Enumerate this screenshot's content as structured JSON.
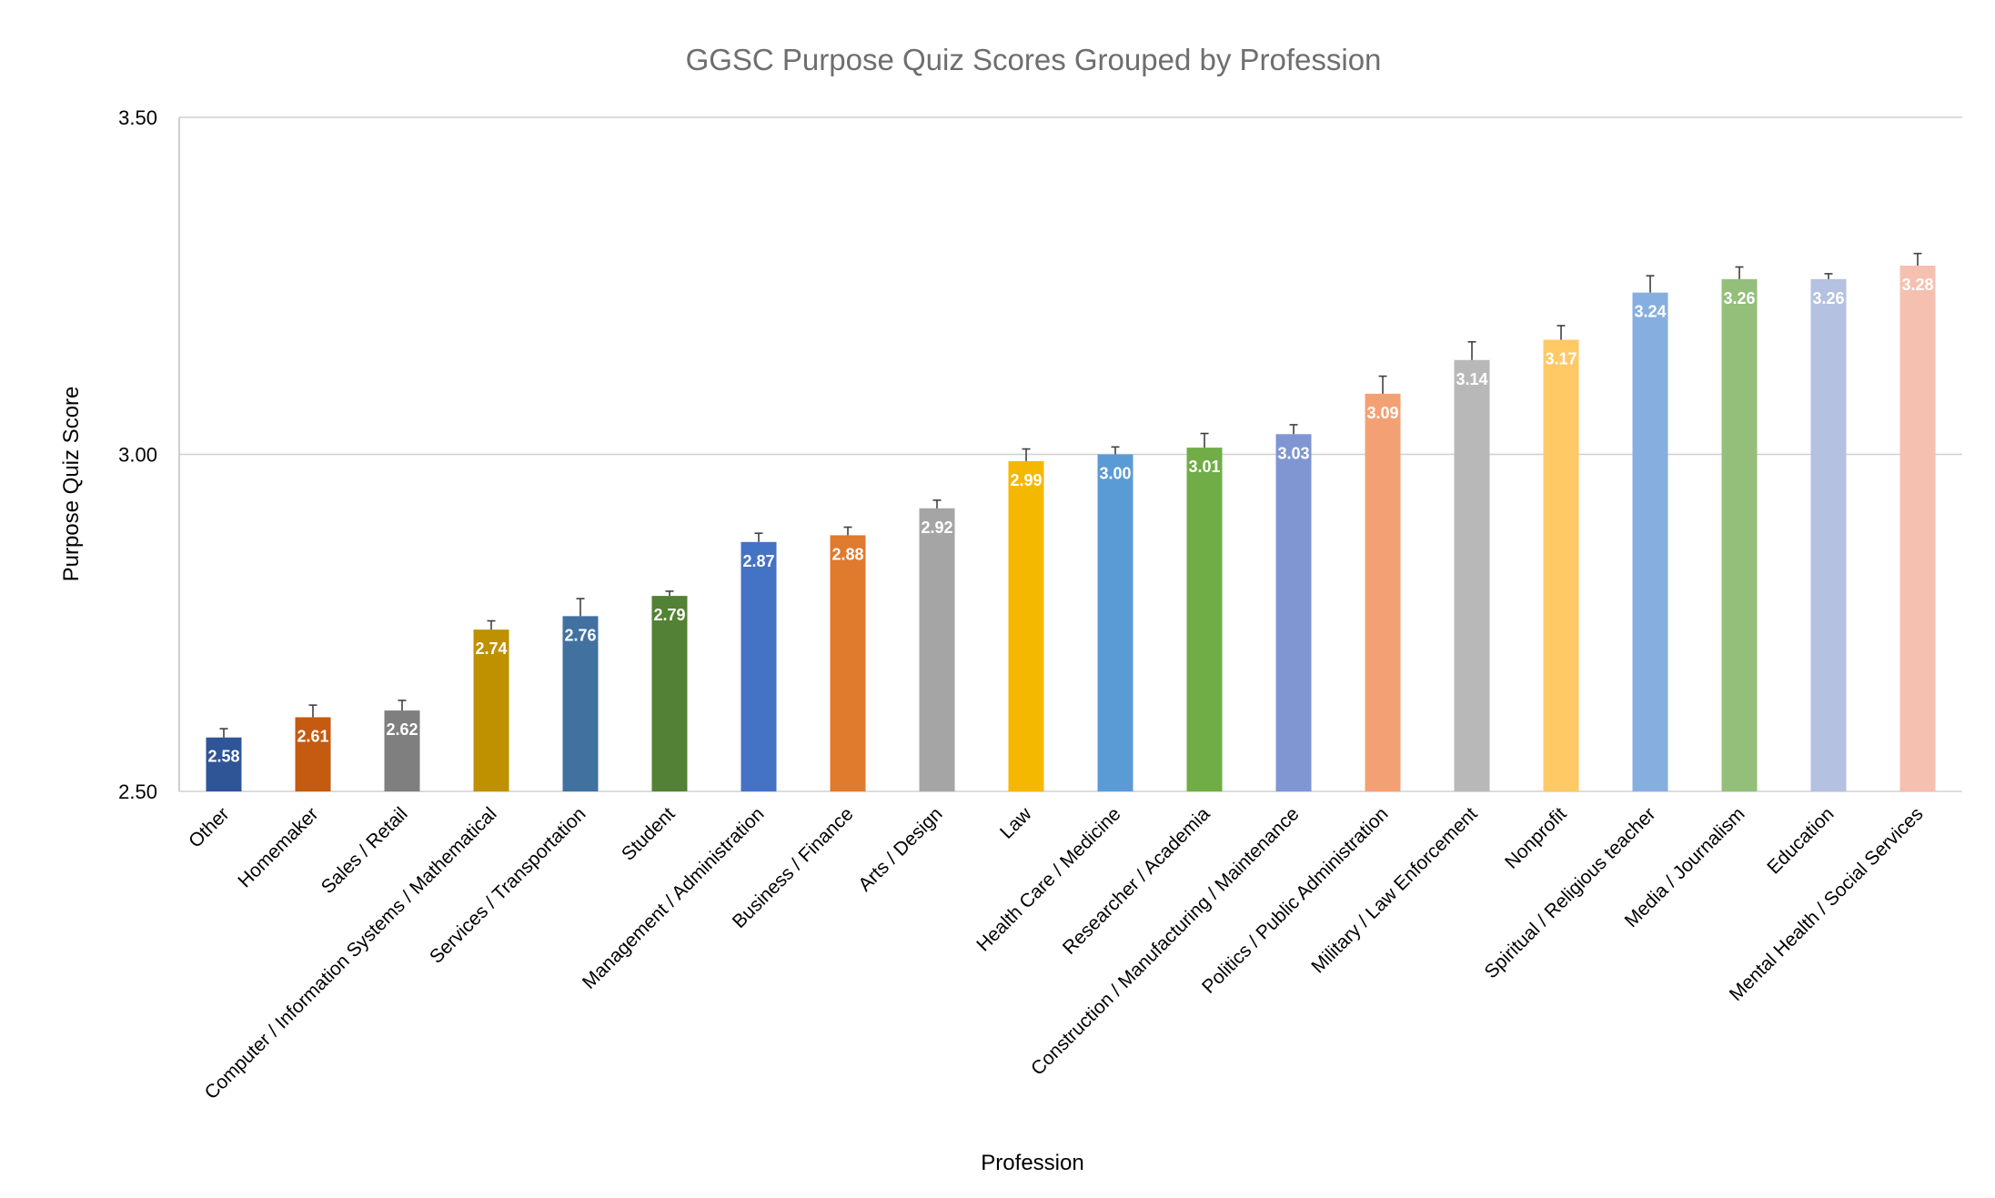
{
  "chart_data": {
    "type": "bar",
    "title": "GGSC Purpose Quiz Scores Grouped by Profession",
    "xlabel": "Profession",
    "ylabel": "Purpose Quiz Score",
    "ylim": [
      2.5,
      3.5
    ],
    "yticks": [
      "2.50",
      "3.00",
      "3.50"
    ],
    "grid": true,
    "legend": "none",
    "categories": [
      "Other",
      "Homemaker",
      "Sales / Retail",
      "Computer / Information Systems / Mathematical",
      "Services / Transportation",
      "Student",
      "Management / Administration",
      "Business / Finance",
      "Arts / Design",
      "Law",
      "Health Care / Medicine",
      "Researcher / Academia",
      "Construction / Manufacturing / Maintenance",
      "Politics / Public Administration",
      "Military / Law Enforcement",
      "Nonprofit",
      "Spiritual / Religious teacher",
      "Media / Journalism",
      "Education",
      "Mental Health / Social Services"
    ],
    "values": [
      2.58,
      2.61,
      2.62,
      2.74,
      2.76,
      2.79,
      2.87,
      2.88,
      2.92,
      2.99,
      3.0,
      3.01,
      3.03,
      3.09,
      3.14,
      3.17,
      3.24,
      3.26,
      3.26,
      3.28
    ],
    "labels": [
      "2.58",
      "2.61",
      "2.62",
      "2.74",
      "2.76",
      "2.79",
      "2.87",
      "2.88",
      "2.92",
      "2.99",
      "3.00",
      "3.01",
      "3.03",
      "3.09",
      "3.14",
      "3.17",
      "3.24",
      "3.26",
      "3.26",
      "3.28"
    ],
    "error_upper": [
      0.013,
      0.018,
      0.015,
      0.013,
      0.026,
      0.007,
      0.013,
      0.012,
      0.012,
      0.018,
      0.011,
      0.021,
      0.014,
      0.026,
      0.027,
      0.021,
      0.025,
      0.018,
      0.008,
      0.018
    ],
    "colors": [
      "#2f5597",
      "#c55a11",
      "#7f7f7f",
      "#bf9000",
      "#41729f",
      "#538135",
      "#4472c4",
      "#e07a2d",
      "#a5a5a5",
      "#f5b800",
      "#5b9bd5",
      "#70ad47",
      "#7f96d2",
      "#f4a075",
      "#b8b8b8",
      "#ffc966",
      "#86afe0",
      "#93bf7a",
      "#b4c1e1",
      "#f5c0b0"
    ]
  }
}
